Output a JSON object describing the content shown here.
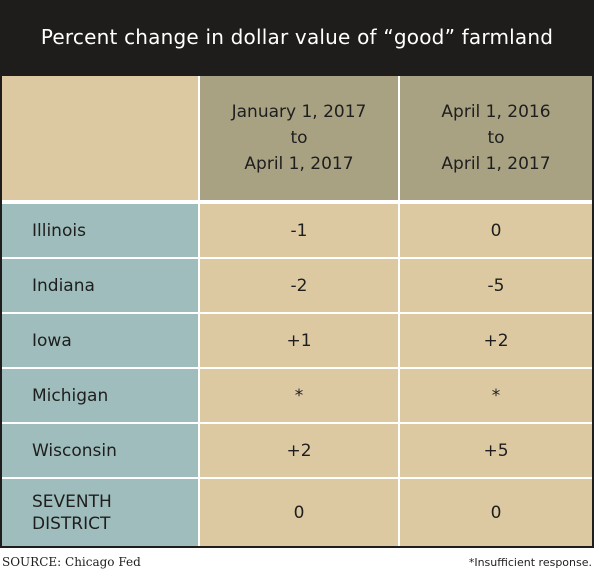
{
  "chart_data": {
    "type": "table",
    "title": "Percent change in dollar value of “good” farmland",
    "columns": [
      {
        "lines": [
          "January 1, 2017",
          "to",
          "April 1, 2017"
        ]
      },
      {
        "lines": [
          "April 1, 2016",
          "to",
          "April 1, 2017"
        ]
      }
    ],
    "rows": [
      {
        "label": "Illinois",
        "values": [
          "-1",
          "0"
        ]
      },
      {
        "label": "Indiana",
        "values": [
          "-2",
          "-5"
        ]
      },
      {
        "label": "Iowa",
        "values": [
          "+1",
          "+2"
        ]
      },
      {
        "label": "Michigan",
        "values": [
          "*",
          "*"
        ]
      },
      {
        "label": "Wisconsin",
        "values": [
          "+2",
          "+5"
        ]
      },
      {
        "label": "SEVENTH DISTRICT",
        "label_lines": [
          "SEVENTH",
          "DISTRICT"
        ],
        "values": [
          "0",
          "0"
        ]
      }
    ],
    "source": "SOURCE: Chicago Fed",
    "note": "*Insufficient response."
  },
  "colors": {
    "frame": "#1f1d1c",
    "header": "#a8a283",
    "header_corner": "#dcc9a2",
    "state_column": "#9fbdbc",
    "value_cells": "#dcc9a2"
  }
}
